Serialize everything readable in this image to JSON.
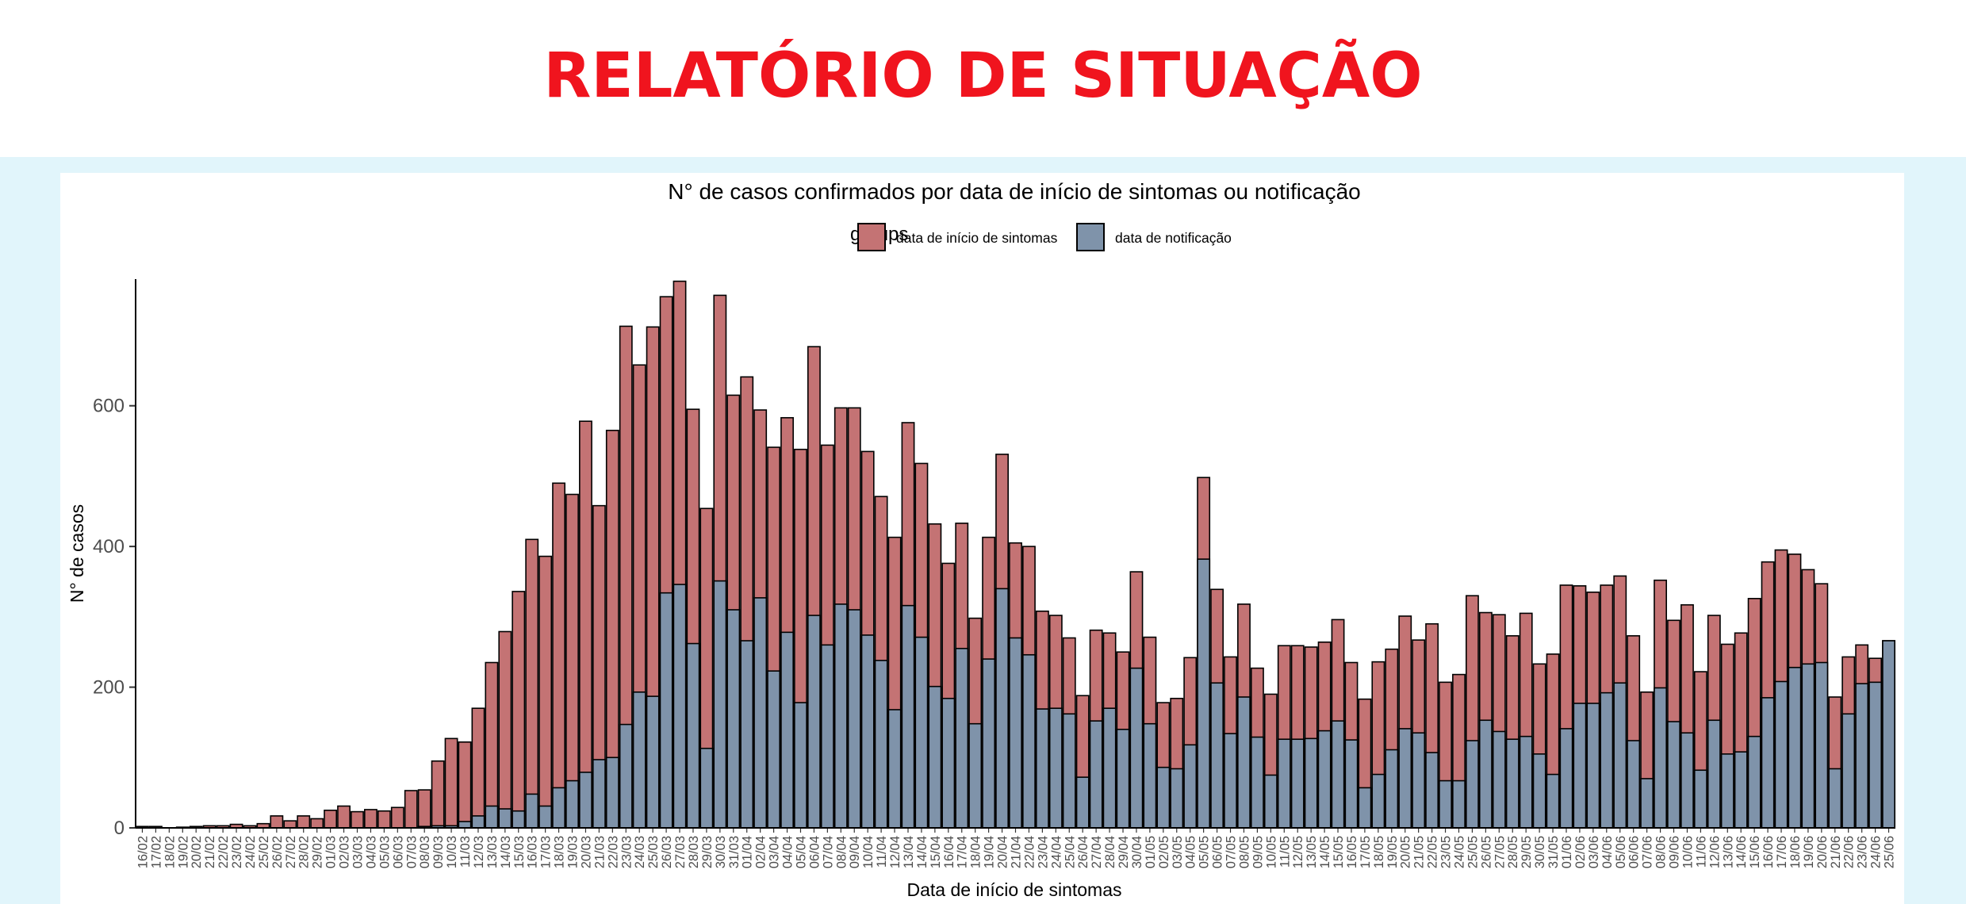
{
  "header": {
    "title": "RELATÓRIO DE SITUAÇÃO"
  },
  "chart_data": {
    "type": "bar",
    "stacked": false,
    "title": "N° de casos confirmados por data de início de sintomas ou notificação",
    "xlabel": "Data de início de sintomas",
    "ylabel": "N° de casos",
    "legend": {
      "title": "groups",
      "position": "top"
    },
    "ylim": [
      0,
      780
    ],
    "yticks": [
      0,
      200,
      400,
      600
    ],
    "grid": false,
    "categories": [
      "16/02",
      "17/02",
      "18/02",
      "19/02",
      "20/02",
      "21/02",
      "22/02",
      "23/02",
      "24/02",
      "25/02",
      "26/02",
      "27/02",
      "28/02",
      "29/02",
      "01/03",
      "02/03",
      "03/03",
      "04/03",
      "05/03",
      "06/03",
      "07/03",
      "08/03",
      "09/03",
      "10/03",
      "11/03",
      "12/03",
      "13/03",
      "14/03",
      "15/03",
      "16/03",
      "17/03",
      "18/03",
      "19/03",
      "20/03",
      "21/03",
      "22/03",
      "23/03",
      "24/03",
      "25/03",
      "26/03",
      "27/03",
      "28/03",
      "29/03",
      "30/03",
      "31/03",
      "01/04",
      "02/04",
      "03/04",
      "04/04",
      "05/04",
      "06/04",
      "07/04",
      "08/04",
      "09/04",
      "10/04",
      "11/04",
      "12/04",
      "13/04",
      "14/04",
      "15/04",
      "16/04",
      "17/04",
      "18/04",
      "19/04",
      "20/04",
      "21/04",
      "22/04",
      "23/04",
      "24/04",
      "25/04",
      "26/04",
      "27/04",
      "28/04",
      "29/04",
      "30/04",
      "01/05",
      "02/05",
      "03/05",
      "04/05",
      "05/05",
      "06/05",
      "07/05",
      "08/05",
      "09/05",
      "10/05",
      "11/05",
      "12/05",
      "13/05",
      "14/05",
      "15/05",
      "16/05",
      "17/05",
      "18/05",
      "19/05",
      "20/05",
      "21/05",
      "22/05",
      "23/05",
      "24/05",
      "25/05",
      "26/05",
      "27/05",
      "28/05",
      "29/05",
      "30/05",
      "31/05",
      "01/06",
      "02/06",
      "03/06",
      "04/06",
      "05/06",
      "06/06",
      "07/06",
      "08/06",
      "09/06",
      "10/06",
      "11/06",
      "12/06",
      "13/06",
      "14/06",
      "15/06",
      "16/06",
      "17/06",
      "18/06",
      "19/06",
      "20/06",
      "21/06",
      "22/06",
      "23/06",
      "24/06",
      "25/06"
    ],
    "series": [
      {
        "name": "data de início de sintomas",
        "color": "#c47374",
        "values": [
          2,
          2,
          0,
          1,
          2,
          3,
          3,
          5,
          3,
          6,
          17,
          10,
          17,
          13,
          25,
          31,
          23,
          26,
          24,
          29,
          53,
          54,
          95,
          127,
          122,
          170,
          235,
          279,
          336,
          410,
          386,
          490,
          474,
          578,
          458,
          565,
          713,
          658,
          712,
          755,
          777,
          595,
          454,
          757,
          615,
          641,
          594,
          541,
          583,
          538,
          684,
          544,
          597,
          597,
          535,
          471,
          413,
          576,
          518,
          432,
          376,
          433,
          298,
          413,
          531,
          405,
          400,
          308,
          302,
          270,
          188,
          281,
          277,
          250,
          364,
          271,
          178,
          184,
          242,
          498,
          339,
          243,
          318,
          227,
          190,
          259,
          259,
          257,
          264,
          296,
          235,
          183,
          236,
          254,
          301,
          267,
          290,
          207,
          218,
          330,
          306,
          303,
          273,
          305,
          233,
          247,
          345,
          344,
          335,
          345,
          358,
          273,
          193,
          352,
          295,
          317,
          222,
          302,
          261,
          277,
          326,
          378,
          395,
          389,
          367,
          347,
          186,
          243,
          260,
          241,
          266
        ]
      },
      {
        "name": "data de notificação",
        "color": "#7f93aa",
        "values": [
          0,
          0,
          0,
          0,
          0,
          0,
          0,
          0,
          0,
          0,
          0,
          0,
          0,
          0,
          0,
          0,
          0,
          0,
          0,
          0,
          0,
          2,
          3,
          3,
          9,
          17,
          31,
          27,
          24,
          48,
          31,
          57,
          67,
          79,
          97,
          100,
          147,
          193,
          187,
          334,
          346,
          262,
          113,
          351,
          310,
          266,
          327,
          223,
          278,
          178,
          302,
          260,
          318,
          310,
          274,
          238,
          168,
          316,
          271,
          201,
          184,
          255,
          148,
          240,
          340,
          270,
          246,
          169,
          170,
          162,
          72,
          152,
          170,
          140,
          227,
          148,
          86,
          84,
          118,
          382,
          206,
          134,
          186,
          129,
          75,
          126,
          126,
          127,
          138,
          152,
          125,
          57,
          76,
          111,
          141,
          135,
          107,
          67,
          67,
          124,
          153,
          137,
          126,
          130,
          105,
          76,
          141,
          177,
          177,
          192,
          206,
          124,
          70,
          199,
          151,
          135,
          82,
          153,
          105,
          108,
          130,
          185,
          208,
          228,
          233,
          235,
          84,
          162,
          205,
          207,
          266
        ]
      }
    ]
  }
}
